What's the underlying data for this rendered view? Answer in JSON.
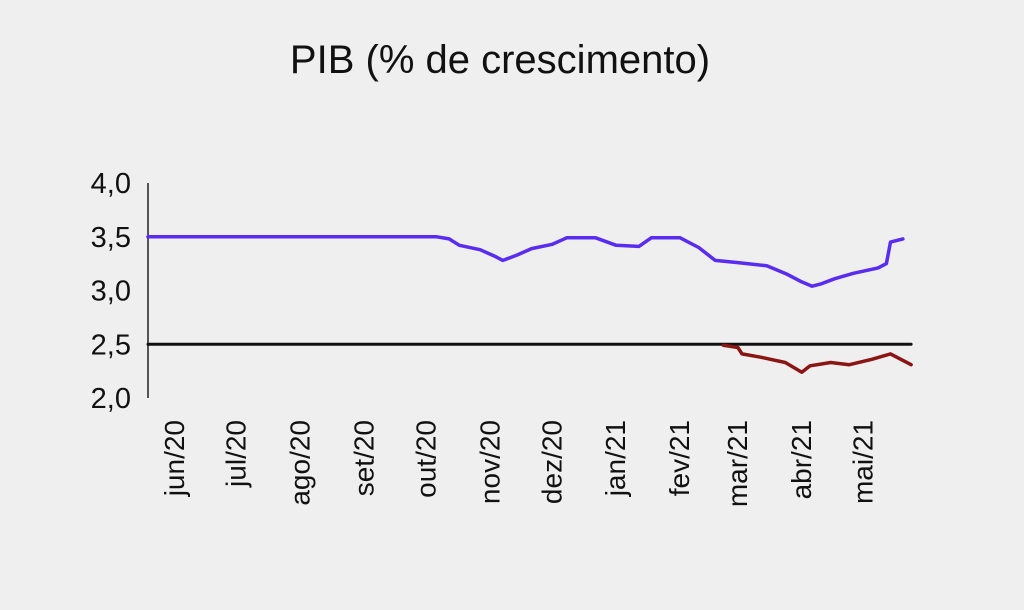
{
  "chart_data": {
    "type": "line",
    "title": "PIB (% de crescimento)",
    "xlabel": "",
    "ylabel": "",
    "ylim": [
      2.0,
      4.0
    ],
    "yticks": [
      "4,0",
      "3,5",
      "3,0",
      "2,5",
      "2,0"
    ],
    "ytick_values": [
      4.0,
      3.5,
      3.0,
      2.5,
      2.0
    ],
    "xlim": [
      "2020-05-19",
      "2021-06-07"
    ],
    "xticks": [
      {
        "label": "jun/20",
        "date": "2020-06-01"
      },
      {
        "label": "jul/20",
        "date": "2020-07-01"
      },
      {
        "label": "ago/20",
        "date": "2020-08-01"
      },
      {
        "label": "set/20",
        "date": "2020-09-01"
      },
      {
        "label": "out/20",
        "date": "2020-10-01"
      },
      {
        "label": "nov/20",
        "date": "2020-11-01"
      },
      {
        "label": "dez/20",
        "date": "2020-12-01"
      },
      {
        "label": "jan/21",
        "date": "2021-01-01"
      },
      {
        "label": "fev/21",
        "date": "2021-02-01"
      },
      {
        "label": "mar/21",
        "date": "2021-03-01"
      },
      {
        "label": "abr/21",
        "date": "2021-04-01"
      },
      {
        "label": "mai/21",
        "date": "2021-05-01"
      }
    ],
    "grid": false,
    "colors": {
      "blue": "#5a2cf0",
      "red": "#8b1414",
      "black": "#111111"
    },
    "series": [
      {
        "color": "#5a2cf0",
        "points": [
          [
            "2020-05-19",
            3.5
          ],
          [
            "2020-10-01",
            3.5
          ],
          [
            "2020-10-06",
            3.5
          ],
          [
            "2020-10-12",
            3.48
          ],
          [
            "2020-10-17",
            3.42
          ],
          [
            "2020-10-27",
            3.38
          ],
          [
            "2020-11-03",
            3.32
          ],
          [
            "2020-11-07",
            3.28
          ],
          [
            "2020-11-14",
            3.33
          ],
          [
            "2020-11-21",
            3.39
          ],
          [
            "2020-12-01",
            3.43
          ],
          [
            "2020-12-08",
            3.49
          ],
          [
            "2020-12-22",
            3.49
          ],
          [
            "2021-01-01",
            3.42
          ],
          [
            "2021-01-12",
            3.41
          ],
          [
            "2021-01-18",
            3.49
          ],
          [
            "2021-02-01",
            3.49
          ],
          [
            "2021-02-10",
            3.4
          ],
          [
            "2021-02-18",
            3.28
          ],
          [
            "2021-03-01",
            3.26
          ],
          [
            "2021-03-15",
            3.23
          ],
          [
            "2021-03-25",
            3.15
          ],
          [
            "2021-04-01",
            3.08
          ],
          [
            "2021-04-06",
            3.04
          ],
          [
            "2021-04-10",
            3.06
          ],
          [
            "2021-04-17",
            3.11
          ],
          [
            "2021-04-26",
            3.16
          ],
          [
            "2021-05-08",
            3.21
          ],
          [
            "2021-05-12",
            3.25
          ],
          [
            "2021-05-14",
            3.45
          ],
          [
            "2021-05-20",
            3.48
          ]
        ]
      },
      {
        "color": "#111111",
        "points": [
          [
            "2020-05-19",
            2.5
          ],
          [
            "2021-05-24",
            2.5
          ]
        ]
      },
      {
        "color": "#8b1414",
        "points": [
          [
            "2021-02-22",
            2.49
          ],
          [
            "2021-03-01",
            2.47
          ],
          [
            "2021-03-03",
            2.41
          ],
          [
            "2021-03-12",
            2.38
          ],
          [
            "2021-03-24",
            2.33
          ],
          [
            "2021-04-01",
            2.24
          ],
          [
            "2021-04-05",
            2.3
          ],
          [
            "2021-04-15",
            2.33
          ],
          [
            "2021-04-24",
            2.31
          ],
          [
            "2021-05-05",
            2.36
          ],
          [
            "2021-05-14",
            2.41
          ],
          [
            "2021-05-24",
            2.31
          ]
        ]
      }
    ]
  }
}
